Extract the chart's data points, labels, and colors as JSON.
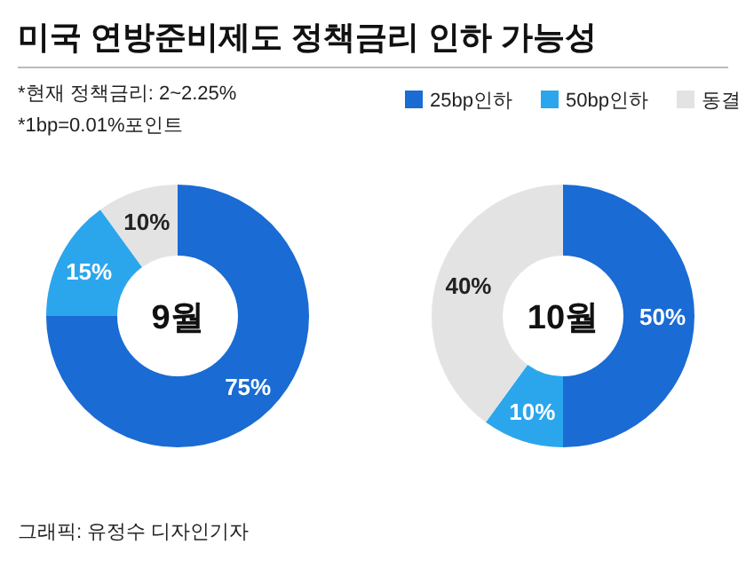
{
  "chart_data": [
    {
      "type": "other",
      "title": "미국 연방준비제도 정책금리 인하 가능성",
      "annotations": [
        "*현재 정책금리: 2~2.25%",
        "*1bp=0.01%포인트",
        "그래픽: 유정수 디자인기자"
      ]
    },
    {
      "type": "donut",
      "title": "9월",
      "categories": [
        "25bp인하",
        "50bp인하",
        "동결"
      ],
      "values": [
        75,
        15,
        10
      ],
      "colors": [
        "#1a6bd4",
        "#2ba6ec",
        "#e3e3e3"
      ],
      "value_labels": [
        "75%",
        "15%",
        "10%"
      ],
      "legend": "top right"
    },
    {
      "type": "donut",
      "title": "10월",
      "categories": [
        null,
        null,
        null
      ],
      "values": [
        50,
        10,
        40
      ],
      "colors": [
        "#1a6bd4",
        "#2ba6ec",
        "#e3e3e3"
      ],
      "value_labels": [
        "50%",
        "10%",
        "40%"
      ]
    }
  ]
}
